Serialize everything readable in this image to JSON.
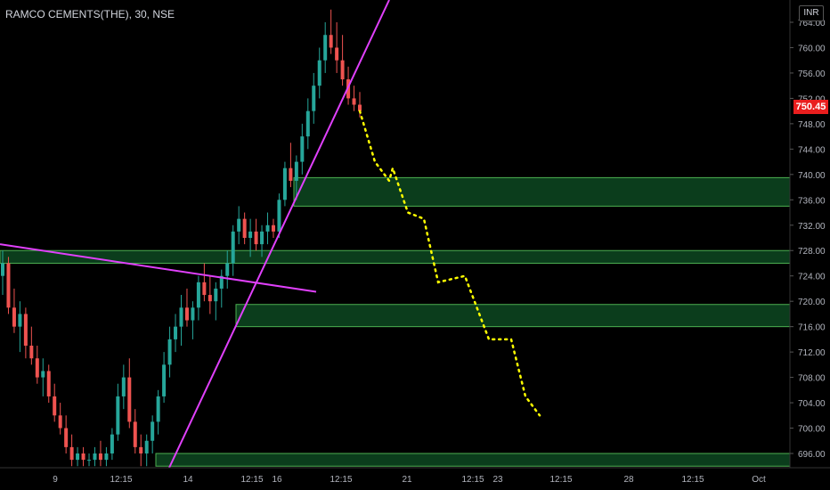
{
  "header": {
    "symbol_title": "RAMCO CEMENTS(THE), 30, NSE",
    "currency": "INR",
    "last_price": "750.45"
  },
  "colors": {
    "background": "#000000",
    "up_candle": "#26a69a",
    "down_candle": "#ef5350",
    "trendline": "#e040fb",
    "projection": "#ffff00",
    "zone_fill": "#0b3d1c",
    "zone_border": "#4caf50",
    "price_tag": "#e91e1e"
  },
  "chart_data": {
    "type": "candlestick",
    "title": "RAMCO CEMENTS(THE), 30, NSE",
    "y_axis": {
      "range": [
        694,
        766
      ],
      "ticks": [
        "696.00",
        "700.00",
        "704.00",
        "708.00",
        "712.00",
        "716.00",
        "720.00",
        "724.00",
        "728.00",
        "732.00",
        "736.00",
        "740.00",
        "744.00",
        "748.00",
        "752.00",
        "756.00",
        "760.00",
        "764.00"
      ]
    },
    "x_axis": {
      "ticks": [
        "9",
        "12:15",
        "14",
        "12:15",
        "16",
        "12:15",
        "21",
        "12:15",
        "23",
        "12:15",
        "28",
        "12:15",
        "Oct"
      ]
    },
    "candles_ohlc": [
      [
        724,
        728,
        721,
        726
      ],
      [
        726,
        727,
        718,
        719
      ],
      [
        719,
        722,
        715,
        716
      ],
      [
        716,
        720,
        712,
        718
      ],
      [
        718,
        719,
        711,
        713
      ],
      [
        713,
        716,
        710,
        711
      ],
      [
        711,
        713,
        707,
        708
      ],
      [
        708,
        711,
        705,
        709
      ],
      [
        709,
        710,
        704,
        705
      ],
      [
        705,
        707,
        701,
        702
      ],
      [
        702,
        704,
        699,
        700
      ],
      [
        700,
        702,
        696,
        697
      ],
      [
        697,
        699,
        694,
        695
      ],
      [
        695,
        697,
        694,
        696
      ],
      [
        696,
        697,
        694,
        695
      ],
      [
        695,
        696,
        694,
        695
      ],
      [
        695,
        697,
        694,
        696
      ],
      [
        696,
        698,
        694,
        695
      ],
      [
        695,
        697,
        694,
        696
      ],
      [
        696,
        700,
        695,
        699
      ],
      [
        699,
        707,
        698,
        705
      ],
      [
        705,
        710,
        703,
        708
      ],
      [
        708,
        711,
        700,
        701
      ],
      [
        701,
        703,
        696,
        697
      ],
      [
        697,
        699,
        694,
        696
      ],
      [
        696,
        699,
        694,
        698
      ],
      [
        698,
        702,
        696,
        701
      ],
      [
        701,
        706,
        699,
        705
      ],
      [
        705,
        712,
        704,
        710
      ],
      [
        710,
        716,
        708,
        714
      ],
      [
        714,
        718,
        712,
        716
      ],
      [
        716,
        721,
        713,
        719
      ],
      [
        719,
        722,
        716,
        717
      ],
      [
        717,
        720,
        714,
        719
      ],
      [
        719,
        724,
        717,
        723
      ],
      [
        723,
        726,
        720,
        721
      ],
      [
        721,
        724,
        718,
        720
      ],
      [
        720,
        723,
        717,
        722
      ],
      [
        722,
        725,
        719,
        724
      ],
      [
        724,
        728,
        722,
        726
      ],
      [
        726,
        732,
        724,
        731
      ],
      [
        731,
        735,
        729,
        733
      ],
      [
        733,
        734,
        729,
        730
      ],
      [
        730,
        733,
        727,
        731
      ],
      [
        731,
        733,
        728,
        729
      ],
      [
        729,
        732,
        727,
        731
      ],
      [
        731,
        734,
        729,
        732
      ],
      [
        732,
        733,
        730,
        731
      ],
      [
        731,
        737,
        730,
        736
      ],
      [
        736,
        742,
        735,
        741
      ],
      [
        741,
        745,
        738,
        739
      ],
      [
        739,
        743,
        736,
        742
      ],
      [
        742,
        748,
        740,
        746
      ],
      [
        746,
        752,
        744,
        750
      ],
      [
        750,
        756,
        748,
        754
      ],
      [
        754,
        760,
        752,
        758
      ],
      [
        758,
        764,
        756,
        762
      ],
      [
        762,
        766,
        759,
        760
      ],
      [
        760,
        764,
        756,
        758
      ],
      [
        758,
        762,
        754,
        755
      ],
      [
        755,
        757,
        751,
        752
      ],
      [
        752,
        754,
        750,
        751
      ],
      [
        751,
        753,
        749,
        750
      ]
    ],
    "projection_path": [
      [
        750,
        748
      ],
      [
        742,
        741
      ],
      [
        739,
        740
      ],
      [
        741,
        741
      ],
      [
        734,
        732
      ],
      [
        733,
        732
      ],
      [
        723,
        724
      ],
      [
        724,
        724
      ],
      [
        714,
        714
      ],
      [
        714,
        715
      ],
      [
        705,
        703
      ],
      [
        702,
        703
      ]
    ],
    "support_resistance_zones": [
      {
        "from": 735,
        "to": 739.5
      },
      {
        "from": 726,
        "to": 728
      },
      {
        "from": 716,
        "to": 719.5
      },
      {
        "from": 694,
        "to": 696
      }
    ],
    "trendlines": [
      {
        "from": [
          "start",
          729
        ],
        "to": [
          "mid",
          721
        ]
      },
      {
        "from": [
          "low",
          694
        ],
        "to": [
          "high",
          766
        ]
      }
    ],
    "current_price": 750.45
  }
}
